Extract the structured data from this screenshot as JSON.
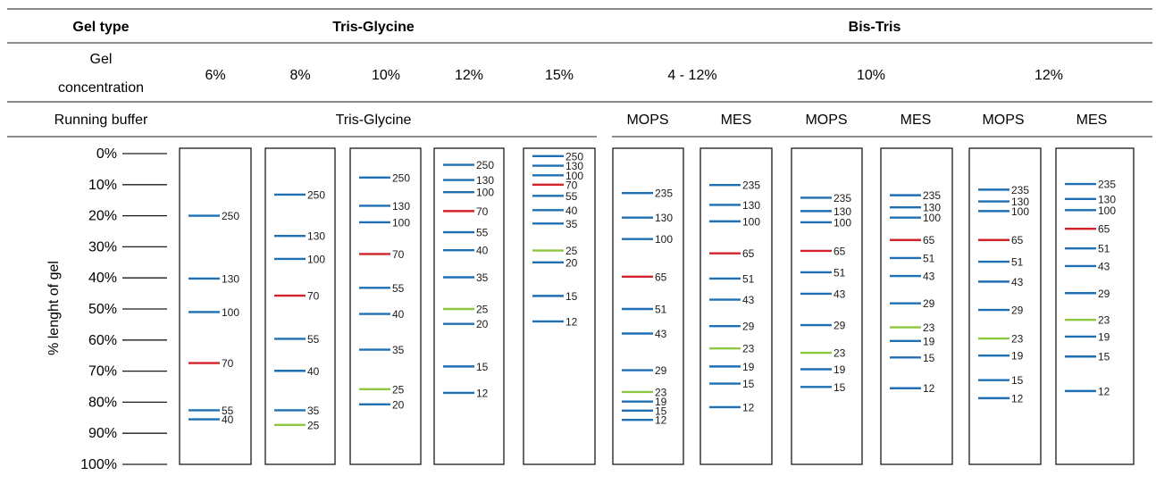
{
  "header": {
    "gel_type_label": "Gel type",
    "gel_conc_label": [
      "Gel",
      "concentration"
    ],
    "buffer_label": "Running buffer",
    "group_tris": "Tris-Glycine",
    "group_bistris": "Bis-Tris",
    "tris_buffer": "Tris-Glycine",
    "concentrations": [
      "6%",
      "8%",
      "10%",
      "12%",
      "15%",
      "4 - 12%",
      "10%",
      "12%"
    ],
    "buffers": [
      "MOPS",
      "MES",
      "MOPS",
      "MES",
      "MOPS",
      "MES"
    ]
  },
  "axis": {
    "label": "% lenght of gel",
    "ticks": [
      "0%",
      "10%",
      "20%",
      "30%",
      "40%",
      "50%",
      "60%",
      "70%",
      "80%",
      "90%",
      "100%"
    ]
  },
  "colors": {
    "blue": "#1f6fb4",
    "red": "#d2232a",
    "green": "#8dc63f",
    "line": "#1a1a1a"
  },
  "chart_data": {
    "type": "diagram",
    "unit": "% length of gel",
    "lanes": [
      {
        "gel": "Tris-Glycine",
        "concentration": "6%",
        "buffer": "Tris-Glycine",
        "bands": [
          {
            "label": "250",
            "pos": 20.0,
            "color": "blue"
          },
          {
            "label": "130",
            "pos": 40.2,
            "color": "blue"
          },
          {
            "label": "100",
            "pos": 51.0,
            "color": "blue"
          },
          {
            "label": "70",
            "pos": 67.4,
            "color": "red"
          },
          {
            "label": "55",
            "pos": 82.6,
            "color": "blue"
          },
          {
            "label": "40",
            "pos": 85.5,
            "color": "blue"
          }
        ]
      },
      {
        "gel": "Tris-Glycine",
        "concentration": "8%",
        "buffer": "Tris-Glycine",
        "bands": [
          {
            "label": "250",
            "pos": 13.2,
            "color": "blue"
          },
          {
            "label": "130",
            "pos": 26.5,
            "color": "blue"
          },
          {
            "label": "100",
            "pos": 33.9,
            "color": "blue"
          },
          {
            "label": "70",
            "pos": 45.7,
            "color": "red"
          },
          {
            "label": "55",
            "pos": 59.6,
            "color": "blue"
          },
          {
            "label": "40",
            "pos": 69.9,
            "color": "blue"
          },
          {
            "label": "35",
            "pos": 82.6,
            "color": "blue"
          },
          {
            "label": "25",
            "pos": 87.3,
            "color": "green"
          }
        ]
      },
      {
        "gel": "Tris-Glycine",
        "concentration": "10%",
        "buffer": "Tris-Glycine",
        "bands": [
          {
            "label": "250",
            "pos": 7.7,
            "color": "blue"
          },
          {
            "label": "130",
            "pos": 16.8,
            "color": "blue"
          },
          {
            "label": "100",
            "pos": 22.1,
            "color": "blue"
          },
          {
            "label": "70",
            "pos": 32.3,
            "color": "red"
          },
          {
            "label": "55",
            "pos": 43.2,
            "color": "blue"
          },
          {
            "label": "40",
            "pos": 51.6,
            "color": "blue"
          },
          {
            "label": "35",
            "pos": 63.1,
            "color": "blue"
          },
          {
            "label": "25",
            "pos": 75.8,
            "color": "green"
          },
          {
            "label": "20",
            "pos": 80.7,
            "color": "blue"
          }
        ]
      },
      {
        "gel": "Tris-Glycine",
        "concentration": "12%",
        "buffer": "Tris-Glycine",
        "bands": [
          {
            "label": "250",
            "pos": 3.6,
            "color": "blue"
          },
          {
            "label": "130",
            "pos": 8.5,
            "color": "blue"
          },
          {
            "label": "100",
            "pos": 12.4,
            "color": "blue"
          },
          {
            "label": "70",
            "pos": 18.5,
            "color": "red"
          },
          {
            "label": "55",
            "pos": 25.3,
            "color": "blue"
          },
          {
            "label": "40",
            "pos": 31.1,
            "color": "blue"
          },
          {
            "label": "35",
            "pos": 39.8,
            "color": "blue"
          },
          {
            "label": "25",
            "pos": 50.0,
            "color": "green"
          },
          {
            "label": "20",
            "pos": 54.8,
            "color": "blue"
          },
          {
            "label": "15",
            "pos": 68.5,
            "color": "blue"
          },
          {
            "label": "12",
            "pos": 77.0,
            "color": "blue"
          }
        ]
      },
      {
        "gel": "Tris-Glycine",
        "concentration": "15%",
        "buffer": "Tris-Glycine",
        "bands": [
          {
            "label": "250",
            "pos": 0.8,
            "color": "blue"
          },
          {
            "label": "130",
            "pos": 3.9,
            "color": "blue"
          },
          {
            "label": "100",
            "pos": 7.0,
            "color": "blue"
          },
          {
            "label": "70",
            "pos": 10.0,
            "color": "red"
          },
          {
            "label": "55",
            "pos": 13.6,
            "color": "blue"
          },
          {
            "label": "40",
            "pos": 18.2,
            "color": "blue"
          },
          {
            "label": "35",
            "pos": 22.5,
            "color": "blue"
          },
          {
            "label": "25",
            "pos": 31.2,
            "color": "green"
          },
          {
            "label": "20",
            "pos": 35.0,
            "color": "blue"
          },
          {
            "label": "15",
            "pos": 45.8,
            "color": "blue"
          },
          {
            "label": "12",
            "pos": 54.0,
            "color": "blue"
          }
        ]
      },
      {
        "gel": "Bis-Tris",
        "concentration": "4 - 12%",
        "buffer": "MOPS",
        "bands": [
          {
            "label": "235",
            "pos": 12.7,
            "color": "blue"
          },
          {
            "label": "130",
            "pos": 20.6,
            "color": "blue"
          },
          {
            "label": "100",
            "pos": 27.5,
            "color": "blue"
          },
          {
            "label": "65",
            "pos": 39.6,
            "color": "red"
          },
          {
            "label": "51",
            "pos": 50.0,
            "color": "blue"
          },
          {
            "label": "43",
            "pos": 57.9,
            "color": "blue"
          },
          {
            "label": "29",
            "pos": 69.7,
            "color": "blue"
          },
          {
            "label": "23",
            "pos": 76.7,
            "color": "green"
          },
          {
            "label": "19",
            "pos": 79.8,
            "color": "blue"
          },
          {
            "label": "15",
            "pos": 82.7,
            "color": "blue"
          },
          {
            "label": "12",
            "pos": 85.7,
            "color": "blue"
          }
        ]
      },
      {
        "gel": "Bis-Tris",
        "concentration": "4 - 12%",
        "buffer": "MES",
        "bands": [
          {
            "label": "235",
            "pos": 10.1,
            "color": "blue"
          },
          {
            "label": "130",
            "pos": 16.5,
            "color": "blue"
          },
          {
            "label": "100",
            "pos": 21.8,
            "color": "blue"
          },
          {
            "label": "65",
            "pos": 32.1,
            "color": "red"
          },
          {
            "label": "51",
            "pos": 40.2,
            "color": "blue"
          },
          {
            "label": "43",
            "pos": 47.0,
            "color": "blue"
          },
          {
            "label": "29",
            "pos": 55.5,
            "color": "blue"
          },
          {
            "label": "23",
            "pos": 62.7,
            "color": "green"
          },
          {
            "label": "19",
            "pos": 68.5,
            "color": "blue"
          },
          {
            "label": "15",
            "pos": 74.0,
            "color": "blue"
          },
          {
            "label": "12",
            "pos": 81.6,
            "color": "blue"
          }
        ]
      },
      {
        "gel": "Bis-Tris",
        "concentration": "10%",
        "buffer": "MOPS",
        "bands": [
          {
            "label": "235",
            "pos": 14.2,
            "color": "blue"
          },
          {
            "label": "130",
            "pos": 18.5,
            "color": "blue"
          },
          {
            "label": "100",
            "pos": 22.1,
            "color": "blue"
          },
          {
            "label": "65",
            "pos": 31.3,
            "color": "red"
          },
          {
            "label": "51",
            "pos": 38.2,
            "color": "blue"
          },
          {
            "label": "43",
            "pos": 45.1,
            "color": "blue"
          },
          {
            "label": "29",
            "pos": 55.2,
            "color": "blue"
          },
          {
            "label": "23",
            "pos": 64.1,
            "color": "green"
          },
          {
            "label": "19",
            "pos": 69.4,
            "color": "blue"
          },
          {
            "label": "15",
            "pos": 75.1,
            "color": "blue"
          }
        ]
      },
      {
        "gel": "Bis-Tris",
        "concentration": "10%",
        "buffer": "MES",
        "bands": [
          {
            "label": "235",
            "pos": 13.4,
            "color": "blue"
          },
          {
            "label": "130",
            "pos": 17.3,
            "color": "blue"
          },
          {
            "label": "100",
            "pos": 20.6,
            "color": "blue"
          },
          {
            "label": "65",
            "pos": 27.8,
            "color": "red"
          },
          {
            "label": "51",
            "pos": 33.6,
            "color": "blue"
          },
          {
            "label": "43",
            "pos": 39.4,
            "color": "blue"
          },
          {
            "label": "29",
            "pos": 48.2,
            "color": "blue"
          },
          {
            "label": "23",
            "pos": 55.9,
            "color": "green"
          },
          {
            "label": "19",
            "pos": 60.3,
            "color": "blue"
          },
          {
            "label": "15",
            "pos": 65.6,
            "color": "blue"
          },
          {
            "label": "12",
            "pos": 75.5,
            "color": "blue"
          }
        ]
      },
      {
        "gel": "Bis-Tris",
        "concentration": "12%",
        "buffer": "MOPS",
        "bands": [
          {
            "label": "235",
            "pos": 11.6,
            "color": "blue"
          },
          {
            "label": "130",
            "pos": 15.4,
            "color": "blue"
          },
          {
            "label": "100",
            "pos": 18.5,
            "color": "blue"
          },
          {
            "label": "65",
            "pos": 27.8,
            "color": "red"
          },
          {
            "label": "51",
            "pos": 34.8,
            "color": "blue"
          },
          {
            "label": "43",
            "pos": 41.2,
            "color": "blue"
          },
          {
            "label": "29",
            "pos": 50.3,
            "color": "blue"
          },
          {
            "label": "23",
            "pos": 59.5,
            "color": "green"
          },
          {
            "label": "19",
            "pos": 65.0,
            "color": "blue"
          },
          {
            "label": "15",
            "pos": 72.9,
            "color": "blue"
          },
          {
            "label": "12",
            "pos": 78.7,
            "color": "blue"
          }
        ]
      },
      {
        "gel": "Bis-Tris",
        "concentration": "12%",
        "buffer": "MES",
        "bands": [
          {
            "label": "235",
            "pos": 9.8,
            "color": "blue"
          },
          {
            "label": "130",
            "pos": 14.6,
            "color": "blue"
          },
          {
            "label": "100",
            "pos": 18.2,
            "color": "blue"
          },
          {
            "label": "65",
            "pos": 24.2,
            "color": "red"
          },
          {
            "label": "51",
            "pos": 30.5,
            "color": "blue"
          },
          {
            "label": "43",
            "pos": 36.2,
            "color": "blue"
          },
          {
            "label": "29",
            "pos": 44.9,
            "color": "blue"
          },
          {
            "label": "23",
            "pos": 53.5,
            "color": "green"
          },
          {
            "label": "19",
            "pos": 58.9,
            "color": "blue"
          },
          {
            "label": "15",
            "pos": 65.3,
            "color": "blue"
          },
          {
            "label": "12",
            "pos": 76.4,
            "color": "blue"
          }
        ]
      }
    ]
  }
}
